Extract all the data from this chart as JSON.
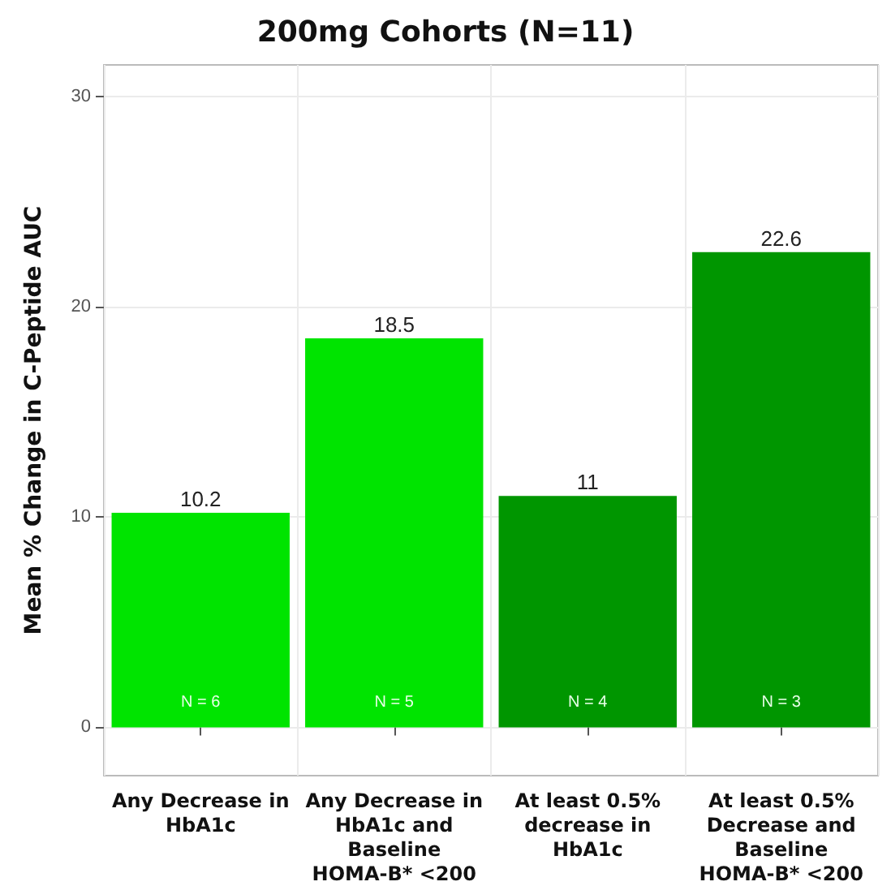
{
  "chart_data": {
    "type": "bar",
    "title": "200mg Cohorts (N=11)",
    "ylabel": "Mean % Change in C-Peptide AUC",
    "categories": [
      "Any Decrease in\nHbA1c",
      "Any Decrease in\nHbA1c and\nBaseline\nHOMA-B* <200",
      "At least 0.5%\ndecrease in\nHbA1c",
      "At least 0.5%\nDecrease and\nBaseline\nHOMA-B* <200"
    ],
    "values": [
      10.2,
      18.5,
      11,
      22.6
    ],
    "colors": [
      "#00e400",
      "#00e400",
      "#009600",
      "#009600"
    ],
    "ylim": [
      -2.3,
      31.5
    ],
    "yticks": [
      0,
      10,
      20,
      30
    ],
    "grid": true,
    "data_labels": true,
    "annotations": [
      "N = 6",
      "N = 5",
      "N = 4",
      "N = 3"
    ]
  }
}
